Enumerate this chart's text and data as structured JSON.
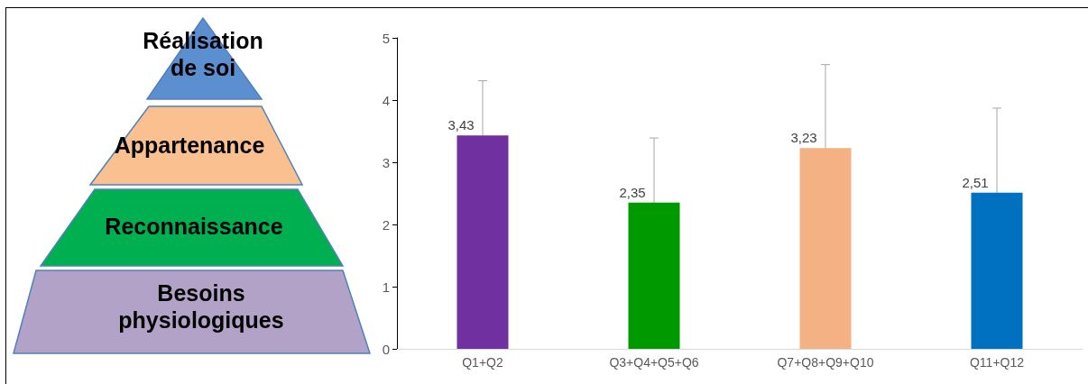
{
  "chart_data": {
    "type": "bar",
    "categories": [
      "Q1+Q2",
      "Q3+Q4+Q5+Q6",
      "Q7+Q8+Q9+Q10",
      "Q11+Q12"
    ],
    "values": [
      3.43,
      2.35,
      3.23,
      2.51
    ],
    "colors": [
      "#7030a0",
      "#009900",
      "#f4b183",
      "#0070c0"
    ],
    "value_labels": [
      "3,43",
      "2,35",
      "3,23",
      "2,51"
    ],
    "errors": [
      [
        3.43,
        4.31
      ],
      [
        2.35,
        3.39
      ],
      [
        3.23,
        4.57
      ],
      [
        2.51,
        3.87
      ]
    ],
    "ylim": [
      0,
      5
    ],
    "yticks": [
      0,
      1,
      2,
      3,
      4,
      5
    ],
    "grid": false,
    "annotations": [
      "Réalisation de soi",
      "Appartenance",
      "Reconnaissance",
      "Besoins physiologiques"
    ]
  }
}
